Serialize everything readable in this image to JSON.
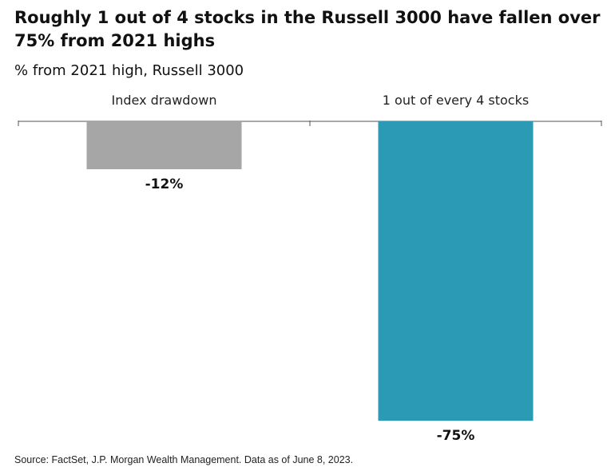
{
  "header": {
    "title": "Roughly 1 out of 4 stocks in the Russell 3000 have fallen over 75% from 2021 highs",
    "subtitle": "% from 2021 high, Russell 3000"
  },
  "footer": {
    "source": "Source: FactSet, J.P. Morgan Wealth Management. Data as of June 8, 2023."
  },
  "chart_data": {
    "type": "bar",
    "title": "Roughly 1 out of 4 stocks in the Russell 3000 have fallen over 75% from 2021 highs",
    "subtitle": "% from 2021 high, Russell 3000",
    "categories": [
      "Index drawdown",
      "1 out of every 4 stocks"
    ],
    "values": [
      -12,
      -75
    ],
    "value_labels": [
      "-12%",
      "-75%"
    ],
    "colors": [
      "#a6a6a6",
      "#2b9ab4"
    ],
    "ylim": [
      -75,
      0
    ],
    "category_label_position": "top",
    "grid": false,
    "legend": "none"
  }
}
